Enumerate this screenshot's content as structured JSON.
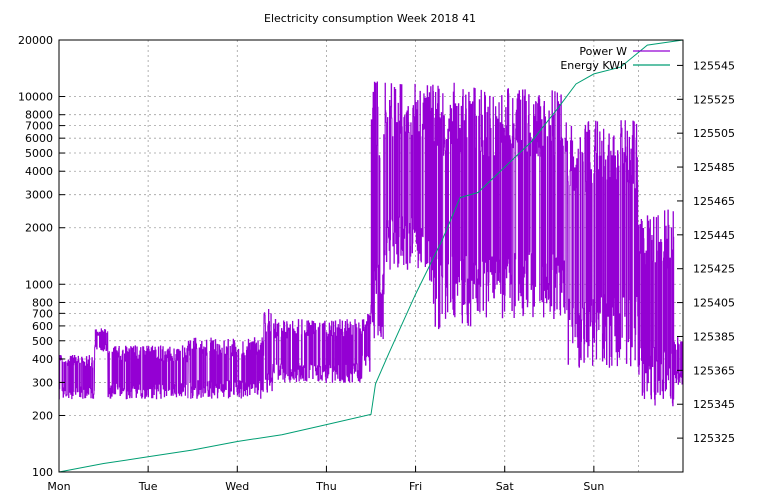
{
  "chart_data": {
    "type": "line",
    "title": "Electricity consumption Week 2018 41",
    "x": {
      "categories": [
        "Mon",
        "Tue",
        "Wed",
        "Thu",
        "Fri",
        "Sat",
        "Sun"
      ],
      "range_days": [
        0,
        7
      ]
    },
    "y_left": {
      "scale": "log",
      "range": [
        100,
        20000
      ],
      "tick_labels": [
        "100",
        "200",
        "300",
        "400",
        "500",
        "600",
        "700",
        "800",
        "1000",
        "2000",
        "3000",
        "4000",
        "5000",
        "6000",
        "7000",
        "8000",
        "10000",
        "20000"
      ]
    },
    "y_right": {
      "scale": "linear",
      "range": [
        125305,
        125560
      ],
      "tick_labels": [
        "125325",
        "125345",
        "125365",
        "125385",
        "125405",
        "125425",
        "125445",
        "125465",
        "125485",
        "125505",
        "125525",
        "125545"
      ]
    },
    "grid": true,
    "legend_position": "top-right",
    "colors": {
      "power": "#9400d3",
      "energy": "#009e73"
    },
    "series": [
      {
        "name": "Power W",
        "axis": "left",
        "segments": [
          {
            "start_day": 0.0,
            "end_day": 0.4,
            "low": 245,
            "high": 420
          },
          {
            "start_day": 0.4,
            "end_day": 0.55,
            "low": 440,
            "high": 580
          },
          {
            "start_day": 0.55,
            "end_day": 1.45,
            "low": 245,
            "high": 470
          },
          {
            "start_day": 1.45,
            "end_day": 2.3,
            "low": 245,
            "high": 520
          },
          {
            "start_day": 2.3,
            "end_day": 2.4,
            "low": 260,
            "high": 750
          },
          {
            "start_day": 2.4,
            "end_day": 2.4,
            "low": 245,
            "high": 500
          },
          {
            "start_day": 2.4,
            "end_day": 3.4,
            "low": 300,
            "high": 650
          },
          {
            "start_day": 3.4,
            "end_day": 3.5,
            "low": 340,
            "high": 700
          },
          {
            "start_day": 3.5,
            "end_day": 3.65,
            "low": 500,
            "high": 12000
          },
          {
            "start_day": 3.65,
            "end_day": 4.15,
            "low": 1200,
            "high": 12000
          },
          {
            "start_day": 4.15,
            "end_day": 4.7,
            "low": 580,
            "high": 12000
          },
          {
            "start_day": 4.7,
            "end_day": 5.7,
            "low": 650,
            "high": 11000
          },
          {
            "start_day": 5.7,
            "end_day": 6.5,
            "low": 360,
            "high": 7500
          },
          {
            "start_day": 6.5,
            "end_day": 6.9,
            "low": 225,
            "high": 2500
          },
          {
            "start_day": 6.9,
            "end_day": 7.0,
            "low": 290,
            "high": 520
          }
        ]
      },
      {
        "name": "Energy KWh",
        "axis": "right",
        "x": [
          0,
          0.5,
          1.0,
          1.5,
          2.0,
          2.5,
          3.0,
          3.5,
          3.55,
          3.7,
          4.0,
          4.3,
          4.5,
          4.7,
          5.0,
          5.3,
          5.6,
          5.8,
          6.0,
          6.3,
          6.6,
          7.0
        ],
        "values": [
          125305,
          125310,
          125314,
          125318,
          125323,
          125327,
          125333,
          125339,
          125357,
          125375,
          125410,
          125442,
          125467,
          125470,
          125485,
          125500,
          125520,
          125534,
          125540,
          125544,
          125557,
          125560
        ]
      }
    ]
  }
}
